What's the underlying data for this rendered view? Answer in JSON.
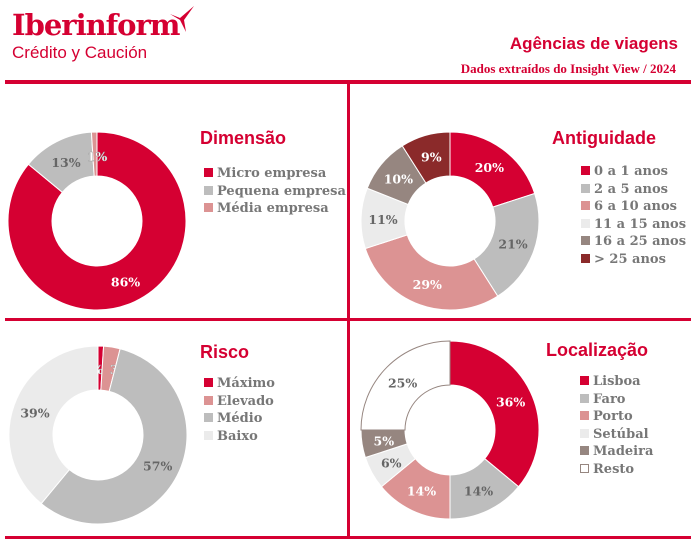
{
  "header": {
    "logo": "Iberinform",
    "logo_sub": "Crédito y Caución",
    "title": "Agências de viagens",
    "subtitle": "Dados extraídos do Insight View / 2024"
  },
  "colors": {
    "accent": "#d50032"
  },
  "chart_data": [
    {
      "type": "pie",
      "title": "Dimensão",
      "categories": [
        "Micro empresa",
        "Pequena empresa",
        "Média empresa"
      ],
      "values": [
        86,
        13,
        1
      ],
      "labels": [
        "86%",
        "13%",
        "1%"
      ],
      "colors": [
        "#d50032",
        "#bdbdbd",
        "#dc9393"
      ],
      "legend": "right"
    },
    {
      "type": "pie",
      "title": "Antiguidade",
      "categories": [
        "0 a 1 anos",
        "2 a 5 anos",
        "6 a 10 anos",
        "11 a 15 anos",
        "16 a 25 anos",
        "> 25 anos"
      ],
      "values": [
        20,
        21,
        29,
        11,
        10,
        9
      ],
      "labels": [
        "20%",
        "21%",
        "29%",
        "11%",
        "10%",
        "9%"
      ],
      "colors": [
        "#d50032",
        "#bdbdbd",
        "#dc9393",
        "#ebebeb",
        "#968680",
        "#8b2a2a"
      ],
      "legend": "right"
    },
    {
      "type": "pie",
      "title": "Risco",
      "categories": [
        "Máximo",
        "Elevado",
        "Médio",
        "Baixo"
      ],
      "values": [
        1,
        3,
        57,
        39
      ],
      "labels": [
        "1%",
        "3%",
        "57%",
        "39%"
      ],
      "colors": [
        "#d50032",
        "#dc9393",
        "#bdbdbd",
        "#ebebeb"
      ],
      "legend": "right"
    },
    {
      "type": "pie",
      "title": "Localização",
      "categories": [
        "Lisboa",
        "Faro",
        "Porto",
        "Setúbal",
        "Madeira",
        "Resto"
      ],
      "values": [
        36,
        14,
        14,
        6,
        5,
        25
      ],
      "labels": [
        "36%",
        "14%",
        "14%",
        "6%",
        "5%",
        "25%"
      ],
      "colors": [
        "#d50032",
        "#bdbdbd",
        "#dc9393",
        "#ebebeb",
        "#968680",
        "#ffffff"
      ],
      "legend": "right"
    }
  ]
}
